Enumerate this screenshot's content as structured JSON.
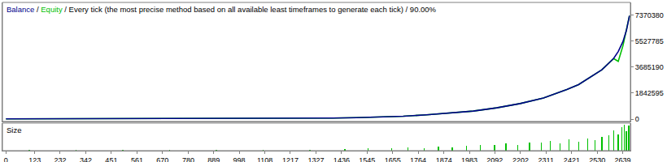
{
  "chart_data": [
    {
      "type": "line",
      "title": "Balance / Equity / Every tick (the most precise method based on all available least timeframes to generate each tick) / 90.00%",
      "x": [
        0,
        200,
        400,
        600,
        800,
        1000,
        1100,
        1200,
        1300,
        1400,
        1500,
        1600,
        1700,
        1800,
        1900,
        2000,
        2100,
        2200,
        2300,
        2400,
        2450,
        2500,
        2550,
        2600,
        2620,
        2640,
        2655,
        2668
      ],
      "series": [
        {
          "name": "Balance",
          "color": "#00008b",
          "values": [
            10000,
            13000,
            17000,
            22000,
            28000,
            35000,
            40000,
            45000,
            50000,
            70000,
            100000,
            140000,
            200000,
            300000,
            420000,
            570000,
            800000,
            1100000,
            1500000,
            2100000,
            2450000,
            2950000,
            3500000,
            4300000,
            4800000,
            5500000,
            6300000,
            7350000
          ]
        },
        {
          "name": "Equity",
          "color": "#00c000",
          "values": [
            10000,
            13000,
            17000,
            22000,
            28000,
            35000,
            40000,
            45000,
            50000,
            70000,
            100000,
            140000,
            200000,
            300000,
            420000,
            570000,
            800000,
            1100000,
            1500000,
            2100000,
            2450000,
            2950000,
            3500000,
            4300000,
            4100000,
            5200000,
            6300000,
            7350000
          ]
        }
      ],
      "xlim": [
        -15,
        2672
      ],
      "ylim": [
        -170000,
        8290000
      ],
      "yticks": [
        0,
        1842595,
        3685190,
        5527785,
        7370380
      ],
      "tick_labels": "y",
      "grid": false
    },
    {
      "type": "bar",
      "title": "Size",
      "x": [
        100,
        300,
        500,
        700,
        900,
        1100,
        1300,
        1450,
        1550,
        1650,
        1720,
        1790,
        1850,
        1910,
        1970,
        2030,
        2090,
        2140,
        2190,
        2240,
        2290,
        2330,
        2370,
        2410,
        2450,
        2490,
        2520,
        2550,
        2580,
        2600,
        2620,
        2635,
        2645,
        2655,
        2665
      ],
      "values": [
        2,
        2,
        2,
        3,
        3,
        3,
        4,
        5,
        8,
        10,
        12,
        10,
        15,
        12,
        18,
        20,
        22,
        25,
        20,
        28,
        30,
        35,
        25,
        40,
        32,
        45,
        38,
        50,
        55,
        72,
        60,
        85,
        95,
        70,
        90
      ],
      "color": "#00c000",
      "xlim": [
        -15,
        2672
      ],
      "xticks": [
        0,
        123,
        232,
        342,
        451,
        561,
        670,
        780,
        889,
        998,
        1108,
        1217,
        1327,
        1436,
        1545,
        1655,
        1764,
        1874,
        1983,
        2092,
        2202,
        2311,
        2421,
        2530,
        2639
      ],
      "ylim": [
        0,
        100
      ],
      "yticks": [],
      "tick_labels": "x",
      "grid": false
    }
  ]
}
